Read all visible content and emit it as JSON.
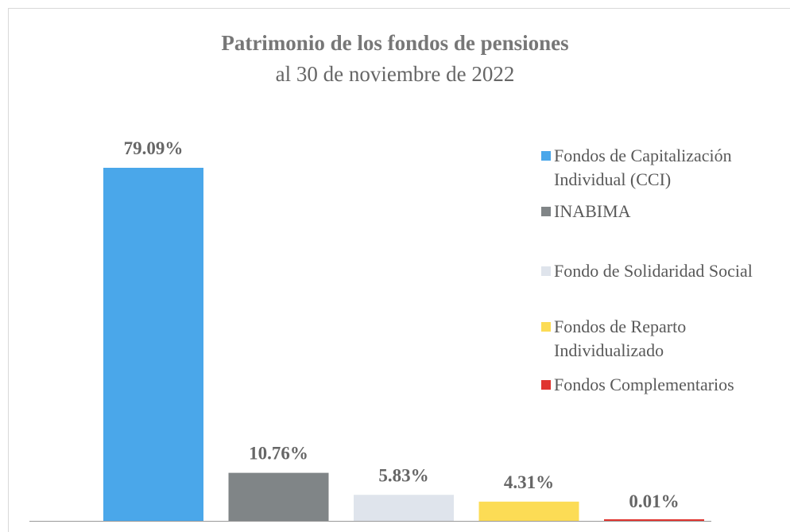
{
  "chart_data": {
    "type": "bar",
    "title": "Patrimonio de los fondos de pensiones",
    "subtitle": "al 30 de noviembre de 2022",
    "categories": [
      "Fondos de Capitalización Individual (CCI)",
      "INABIMA",
      "Fondo de Solidaridad Social",
      "Fondos de Reparto Individualizado",
      "Fondos Complementarios"
    ],
    "values": [
      79.09,
      10.76,
      5.83,
      4.31,
      0.01
    ],
    "value_labels": [
      "79.09%",
      "10.76%",
      "5.83%",
      "4.31%",
      "0.01%"
    ],
    "colors": [
      "#4aa7ea",
      "#808587",
      "#dfe4ec",
      "#fcdc55",
      "#e03530"
    ],
    "legend": "right"
  }
}
